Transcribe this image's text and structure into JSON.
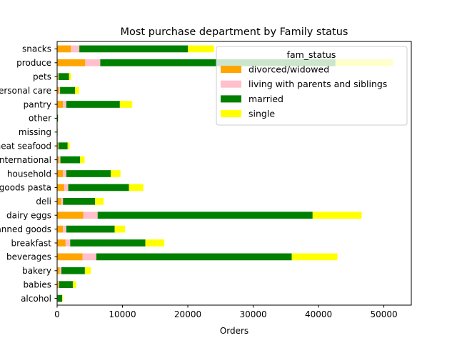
{
  "chart_data": {
    "type": "bar",
    "orientation": "horizontal",
    "stacked": true,
    "title": "Most purchase department by Family status",
    "xlabel": "Orders",
    "ylabel": "",
    "xlim": [
      0,
      54200
    ],
    "xticks": [
      0,
      10000,
      20000,
      30000,
      40000,
      50000
    ],
    "grid": false,
    "categories": [
      "alcohol",
      "babies",
      "bakery",
      "beverages",
      "breakfast",
      "canned goods",
      "dairy eggs",
      "deli",
      "dry goods pasta",
      "household",
      "international",
      "meat seafood",
      "missing",
      "other",
      "pantry",
      "personal care",
      "pets",
      "produce",
      "snacks"
    ],
    "series": [
      {
        "name": "divorced/widowed",
        "color": "#ffa500",
        "values": [
          50,
          200,
          400,
          3900,
          1300,
          900,
          4000,
          600,
          1100,
          900,
          300,
          150,
          5,
          15,
          900,
          300,
          150,
          4300,
          2100
        ]
      },
      {
        "name": "living with parents and siblings",
        "color": "#ffc0cb",
        "values": [
          20,
          100,
          250,
          2100,
          700,
          500,
          2200,
          300,
          600,
          500,
          200,
          60,
          3,
          8,
          500,
          150,
          80,
          2300,
          1300
        ]
      },
      {
        "name": "married",
        "color": "#008000",
        "values": [
          700,
          2100,
          3600,
          29900,
          11500,
          7400,
          32900,
          4900,
          9300,
          6800,
          3000,
          1400,
          60,
          120,
          8200,
          2300,
          1600,
          36000,
          16600
        ]
      },
      {
        "name": "single",
        "color": "#ffff00",
        "values": [
          80,
          500,
          900,
          7000,
          2900,
          1600,
          7500,
          1300,
          2200,
          1500,
          700,
          300,
          10,
          25,
          1900,
          600,
          300,
          8800,
          4000
        ]
      }
    ],
    "legend": {
      "title": "fam_status",
      "placement": "upper-right"
    }
  }
}
